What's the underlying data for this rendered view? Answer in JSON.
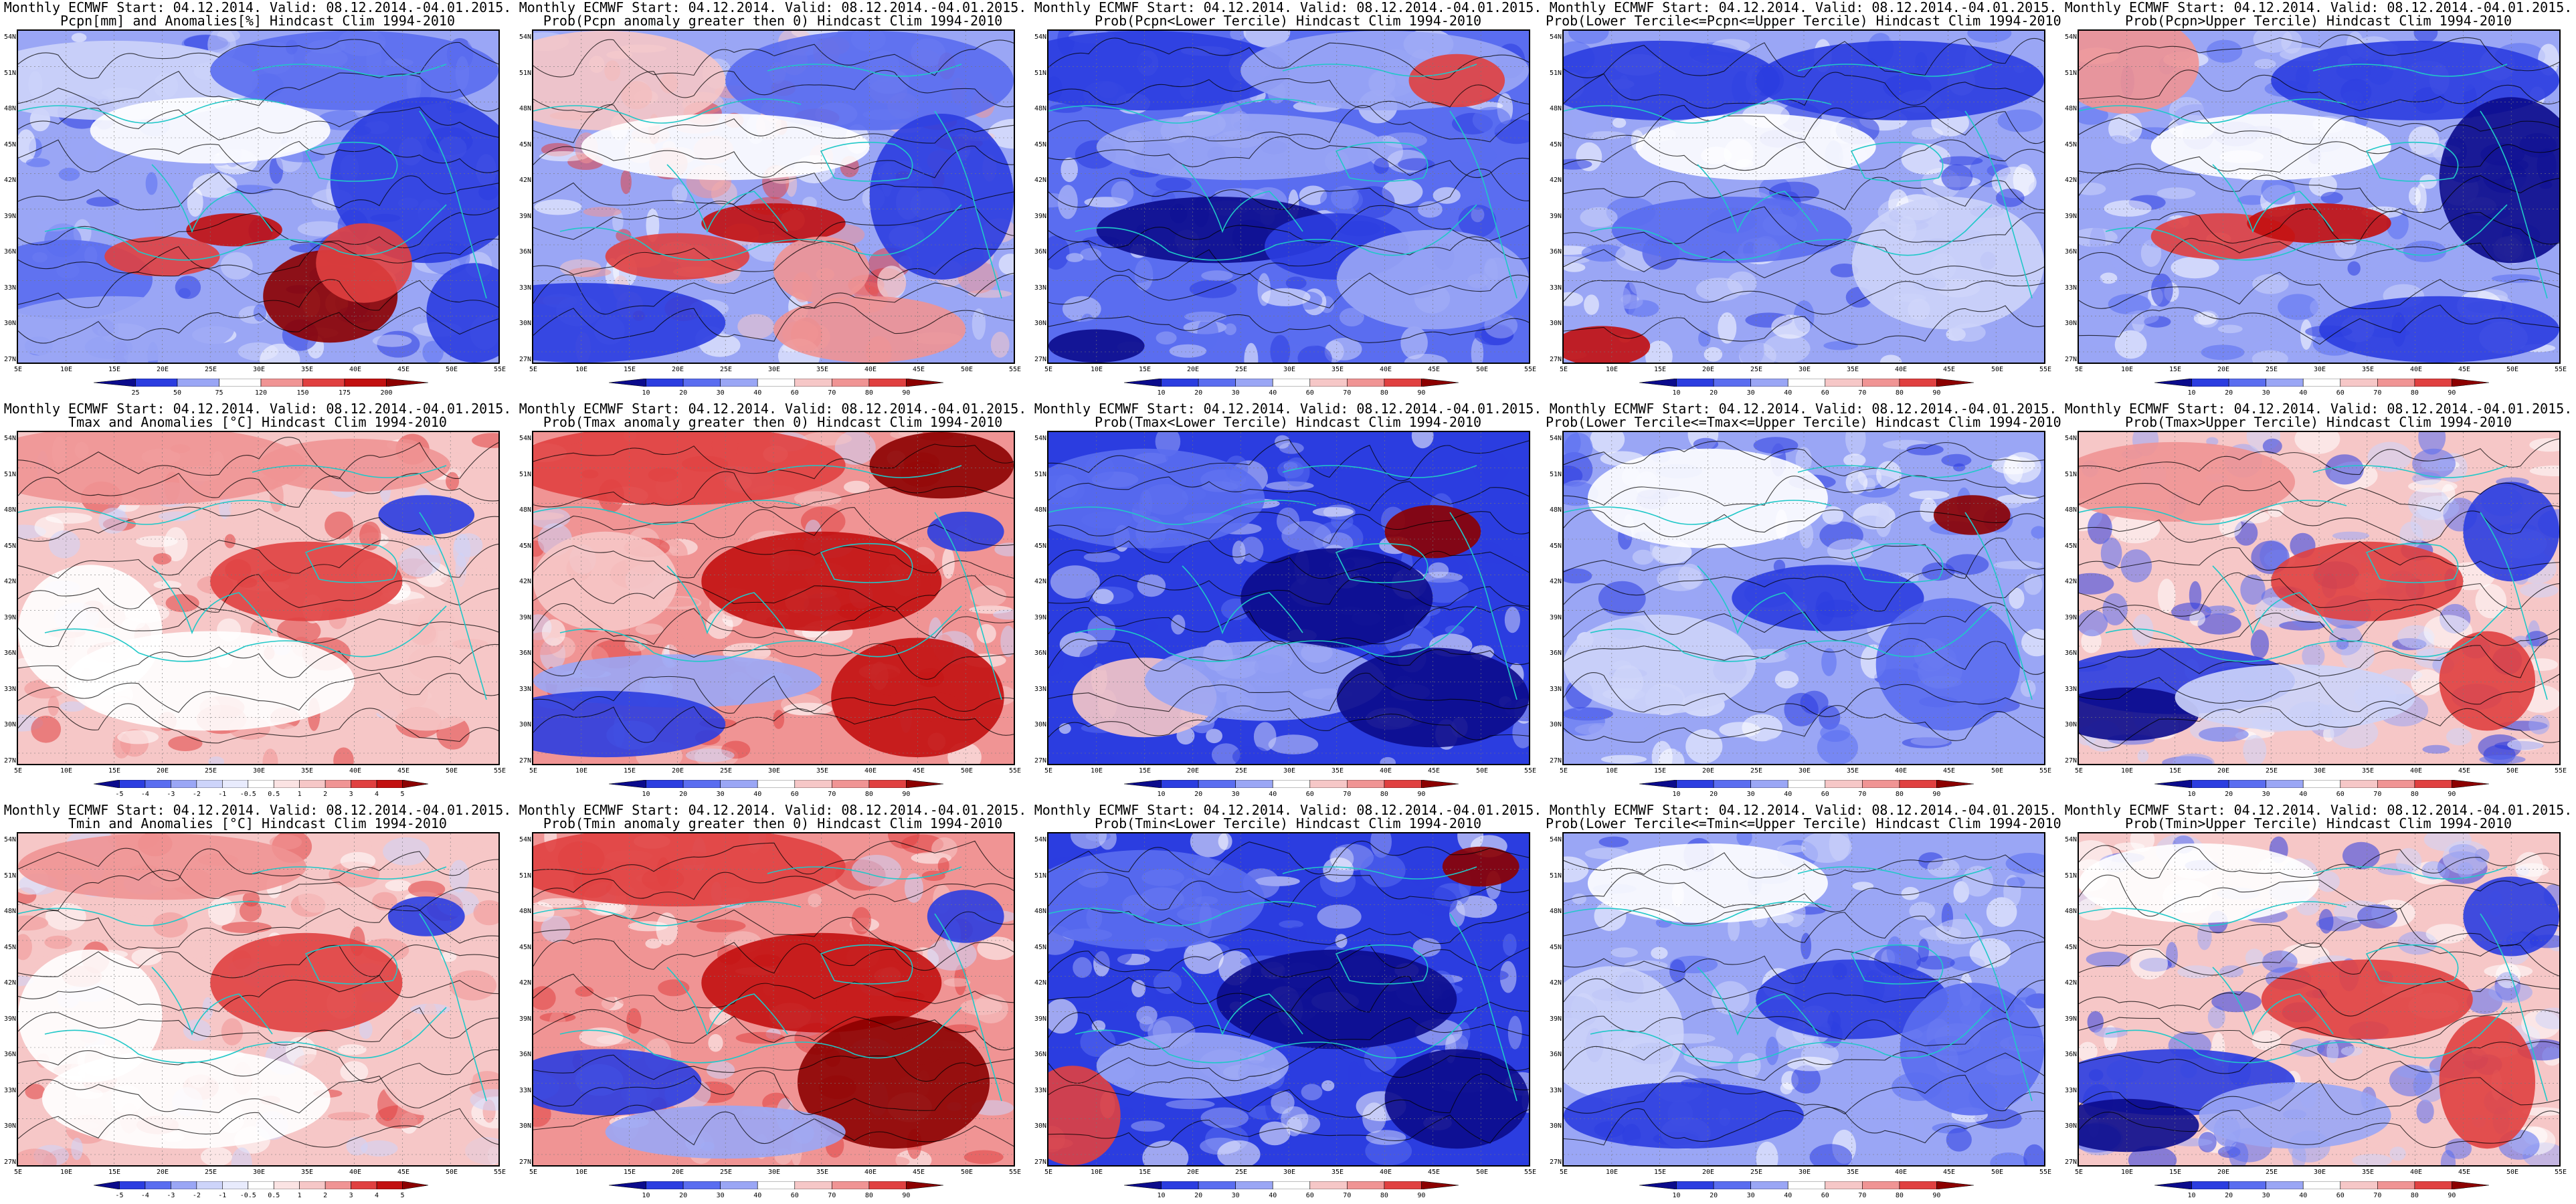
{
  "colors": {
    "deep_blue": "#0b0b8c",
    "blue": "#2b3de0",
    "mid_blue": "#5a6df0",
    "light_blue": "#9aa6f5",
    "pale_blue": "#cdd4fa",
    "white": "#ffffff",
    "pale_red": "#f6c7c7",
    "light_red": "#f09494",
    "red": "#e04040",
    "dark_red": "#c21010",
    "deep_red": "#8c0000",
    "coast": "#20c8c8",
    "contour": "#000000"
  },
  "map_axes": {
    "lat_labels": [
      "54N",
      "51N",
      "48N",
      "45N",
      "42N",
      "39N",
      "36N",
      "33N",
      "30N",
      "27N"
    ],
    "lon_labels": [
      "5E",
      "10E",
      "15E",
      "20E",
      "25E",
      "30E",
      "35E",
      "40E",
      "45E",
      "50E",
      "55E"
    ]
  },
  "colorbars": {
    "pcpn_anom": {
      "ticks": [
        "25",
        "50",
        "75",
        "120",
        "150",
        "175",
        "200"
      ],
      "colors": [
        "#0b0b8c",
        "#2b3de0",
        "#9aa6f5",
        "#ffffff",
        "#f09494",
        "#e04040",
        "#c21010",
        "#8c0000"
      ]
    },
    "prob": {
      "ticks": [
        "10",
        "20",
        "30",
        "40",
        "60",
        "70",
        "80",
        "90"
      ],
      "colors": [
        "#0b0b8c",
        "#2b3de0",
        "#5a6df0",
        "#9aa6f5",
        "#ffffff",
        "#f6c7c7",
        "#f09494",
        "#e04040",
        "#8c0000"
      ]
    },
    "temp_anom": {
      "ticks": [
        "-5",
        "-4",
        "-3",
        "-2",
        "-1",
        "-0.5",
        "0.5",
        "1",
        "2",
        "3",
        "4",
        "5"
      ],
      "colors": [
        "#0b0b8c",
        "#2b3de0",
        "#5a6df0",
        "#9aa6f5",
        "#cdd4fa",
        "#e8ebfd",
        "#ffffff",
        "#fbe3e3",
        "#f6c7c7",
        "#f09494",
        "#e04040",
        "#c21010",
        "#8c0000"
      ]
    }
  },
  "panels": [
    {
      "title_line1": "Monthly ECMWF Start: 04.12.2014. Valid: 08.12.2014.-04.01.2015.",
      "title_line2": "Pcpn[mm] and Anomalies[%] Hindcast Clim 1994-2010",
      "colorbar": "pcpn_anom",
      "mode": "pcpn_anom"
    },
    {
      "title_line1": "Monthly ECMWF Start: 04.12.2014. Valid: 08.12.2014.-04.01.2015.",
      "title_line2": "Prob(Pcpn anomaly greater then 0) Hindcast Clim 1994-2010",
      "colorbar": "prob",
      "mode": "pcpn_pos"
    },
    {
      "title_line1": "Monthly ECMWF Start: 04.12.2014. Valid: 08.12.2014.-04.01.2015.",
      "title_line2": "Prob(Pcpn<Lower Tercile) Hindcast Clim 1994-2010",
      "colorbar": "prob",
      "mode": "pcpn_low"
    },
    {
      "title_line1": "Monthly ECMWF Start: 04.12.2014. Valid: 08.12.2014.-04.01.2015.",
      "title_line2": "Prob(Lower Tercile<=Pcpn<=Upper Tercile) Hindcast Clim 1994-2010",
      "colorbar": "prob",
      "mode": "pcpn_mid"
    },
    {
      "title_line1": "Monthly ECMWF Start: 04.12.2014. Valid: 08.12.2014.-04.01.2015.",
      "title_line2": "Prob(Pcpn>Upper Tercile) Hindcast Clim 1994-2010",
      "colorbar": "prob",
      "mode": "pcpn_up"
    },
    {
      "title_line1": "Monthly ECMWF Start: 04.12.2014. Valid: 08.12.2014.-04.01.2015.",
      "title_line2": "Tmax and Anomalies [°C] Hindcast Clim 1994-2010",
      "colorbar": "temp_anom",
      "mode": "t_anom"
    },
    {
      "title_line1": "Monthly ECMWF Start: 04.12.2014. Valid: 08.12.2014.-04.01.2015.",
      "title_line2": "Prob(Tmax anomaly greater then 0) Hindcast Clim 1994-2010",
      "colorbar": "prob",
      "mode": "t_pos"
    },
    {
      "title_line1": "Monthly ECMWF Start: 04.12.2014. Valid: 08.12.2014.-04.01.2015.",
      "title_line2": "Prob(Tmax<Lower Tercile) Hindcast Clim 1994-2010",
      "colorbar": "prob",
      "mode": "t_low"
    },
    {
      "title_line1": "Monthly ECMWF Start: 04.12.2014. Valid: 08.12.2014.-04.01.2015.",
      "title_line2": "Prob(Lower Tercile<=Tmax<=Upper Tercile) Hindcast Clim 1994-2010",
      "colorbar": "prob",
      "mode": "t_mid"
    },
    {
      "title_line1": "Monthly ECMWF Start: 04.12.2014. Valid: 08.12.2014.-04.01.2015.",
      "title_line2": "Prob(Tmax>Upper Tercile) Hindcast Clim 1994-2010",
      "colorbar": "prob",
      "mode": "t_up"
    },
    {
      "title_line1": "Monthly ECMWF Start: 04.12.2014. Valid: 08.12.2014.-04.01.2015.",
      "title_line2": "Tmin and Anomalies [°C] Hindcast Clim 1994-2010",
      "colorbar": "temp_anom",
      "mode": "tn_anom"
    },
    {
      "title_line1": "Monthly ECMWF Start: 04.12.2014. Valid: 08.12.2014.-04.01.2015.",
      "title_line2": "Prob(Tmin anomaly greater then 0) Hindcast Clim 1994-2010",
      "colorbar": "prob",
      "mode": "tn_pos"
    },
    {
      "title_line1": "Monthly ECMWF Start: 04.12.2014. Valid: 08.12.2014.-04.01.2015.",
      "title_line2": "Prob(Tmin<Lower Tercile) Hindcast Clim 1994-2010",
      "colorbar": "prob",
      "mode": "tn_low"
    },
    {
      "title_line1": "Monthly ECMWF Start: 04.12.2014. Valid: 08.12.2014.-04.01.2015.",
      "title_line2": "Prob(Lower Tercile<=Tmin<=Upper Tercile) Hindcast Clim 1994-2010",
      "colorbar": "prob",
      "mode": "tn_mid"
    },
    {
      "title_line1": "Monthly ECMWF Start: 04.12.2014. Valid: 08.12.2014.-04.01.2015.",
      "title_line2": "Prob(Tmin>Upper Tercile) Hindcast Clim 1994-2010",
      "colorbar": "prob",
      "mode": "tn_up"
    }
  ]
}
